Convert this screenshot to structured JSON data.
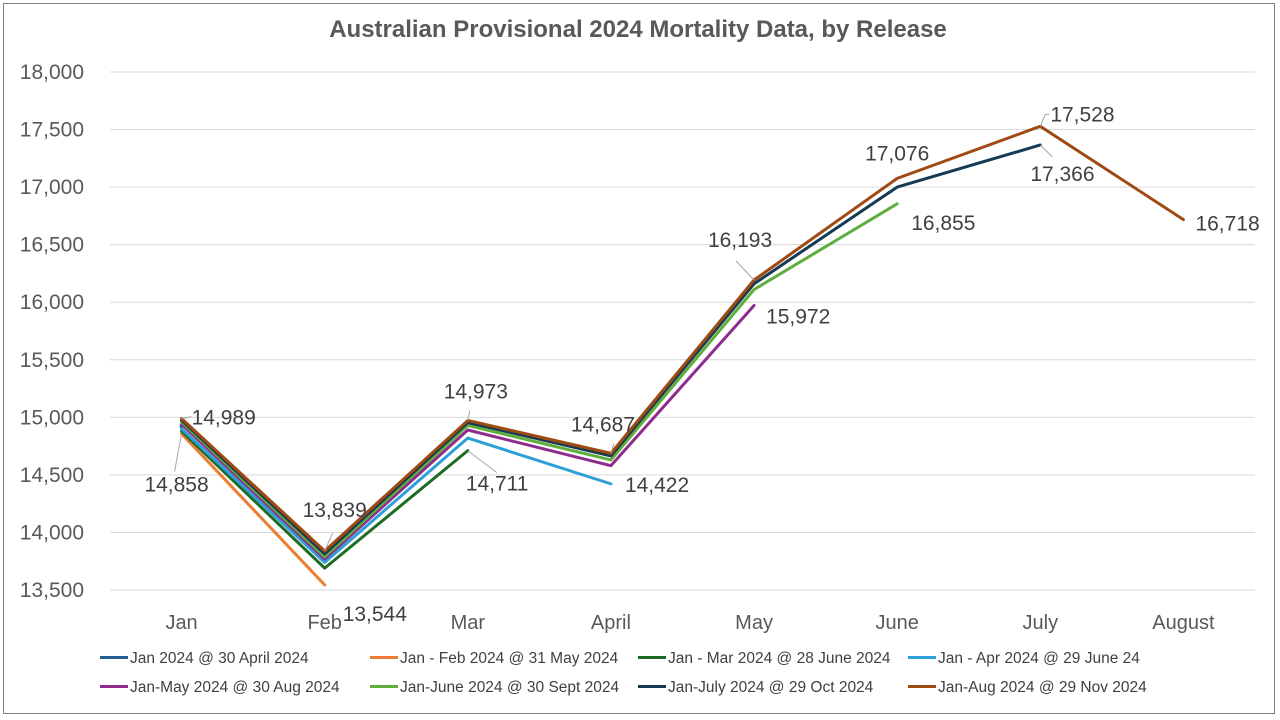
{
  "chart_data": {
    "type": "line",
    "title": "Australian Provisional 2024 Mortality Data, by Release",
    "xlabel": "",
    "ylabel": "",
    "categories": [
      "Jan",
      "Feb",
      "Mar",
      "April",
      "May",
      "June",
      "July",
      "August"
    ],
    "ylim": [
      13500,
      18000
    ],
    "yticks": [
      "13,500",
      "14,000",
      "14,500",
      "15,000",
      "15,500",
      "16,000",
      "16,500",
      "17,000",
      "17,500",
      "18,000"
    ],
    "grid": true,
    "legend_position": "bottom",
    "series": [
      {
        "name": "Jan 2024 @ 30 April 2024",
        "color": "#255e91",
        "values": [
          14920,
          null,
          null,
          null,
          null,
          null,
          null,
          null
        ]
      },
      {
        "name": "Jan - Feb 2024 @ 31 May 2024",
        "color": "#ed7d31",
        "values": [
          14858,
          13544,
          null,
          null,
          null,
          null,
          null,
          null
        ]
      },
      {
        "name": "Jan - Mar 2024 @ 28 June 2024",
        "color": "#1e6b24",
        "values": [
          14880,
          13690,
          14711,
          null,
          null,
          null,
          null,
          null
        ]
      },
      {
        "name": "Jan - Apr 2024 @ 29 June 24",
        "color": "#2e9fd8",
        "values": [
          14900,
          13740,
          14820,
          14422,
          null,
          null,
          null,
          null
        ]
      },
      {
        "name": "Jan-May 2024 @ 30 Aug 2024",
        "color": "#8e2c8e",
        "values": [
          14940,
          13770,
          14890,
          14580,
          15972,
          null,
          null,
          null
        ]
      },
      {
        "name": "Jan-June 2024 @ 30 Sept 2024",
        "color": "#5fad3c",
        "values": [
          14960,
          13790,
          14930,
          14630,
          16110,
          16855,
          null,
          null
        ]
      },
      {
        "name": "Jan-July 2024 @ 29 Oct 2024",
        "color": "#153a54",
        "values": [
          14975,
          13815,
          14955,
          14665,
          16160,
          17000,
          17366,
          null
        ]
      },
      {
        "name": "Jan-Aug 2024 @ 29 Nov 2024",
        "color": "#9e4a12",
        "values": [
          14989,
          13839,
          14973,
          14687,
          16193,
          17076,
          17528,
          16718
        ]
      }
    ],
    "data_labels": [
      {
        "series": 7,
        "index": 0,
        "text": "14,989"
      },
      {
        "series": 1,
        "index": 0,
        "text": "14,858"
      },
      {
        "series": 7,
        "index": 1,
        "text": "13,839"
      },
      {
        "series": 1,
        "index": 1,
        "text": "13,544"
      },
      {
        "series": 7,
        "index": 2,
        "text": "14,973"
      },
      {
        "series": 2,
        "index": 2,
        "text": "14,711"
      },
      {
        "series": 7,
        "index": 3,
        "text": "14,687"
      },
      {
        "series": 3,
        "index": 3,
        "text": "14,422"
      },
      {
        "series": 7,
        "index": 4,
        "text": "16,193"
      },
      {
        "series": 4,
        "index": 4,
        "text": "15,972"
      },
      {
        "series": 7,
        "index": 5,
        "text": "17,076"
      },
      {
        "series": 5,
        "index": 5,
        "text": "16,855"
      },
      {
        "series": 7,
        "index": 6,
        "text": "17,528"
      },
      {
        "series": 6,
        "index": 6,
        "text": "17,366"
      },
      {
        "series": 7,
        "index": 7,
        "text": "16,718"
      }
    ]
  }
}
